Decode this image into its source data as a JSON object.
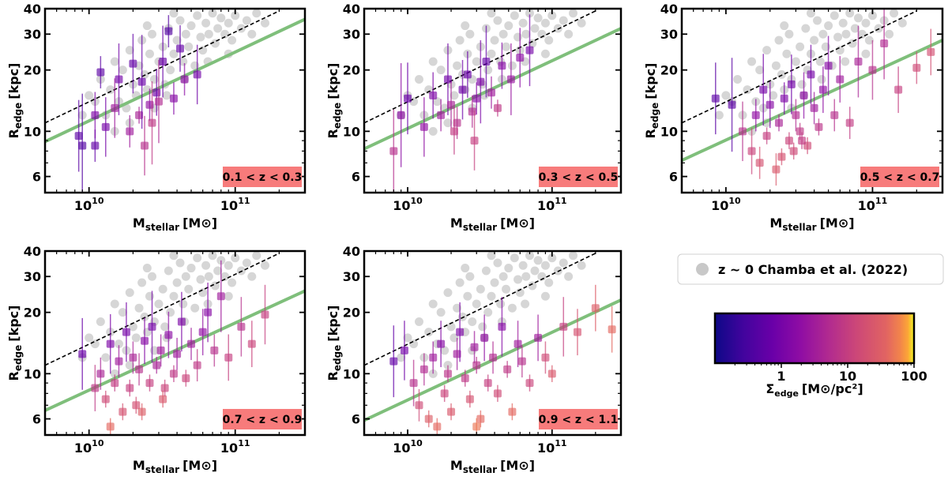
{
  "chart_data": {
    "type": "scatter",
    "x_scale": "log",
    "y_scale": "log",
    "xlim": [
      5000000000,
      300000000000
    ],
    "ylim": [
      5,
      40
    ],
    "x_tick_labels": [
      "10^10",
      "10^11"
    ],
    "y_tick_labels": [
      "6",
      "10",
      "20",
      "30",
      "40"
    ],
    "xlabel_main": "M",
    "xlabel_sub": "stellar",
    "xlabel_unit": "[M⊙]",
    "ylabel_main": "R",
    "ylabel_sub": "edge",
    "ylabel_unit": "[kpc]",
    "legend": {
      "label": "z ~ 0 Chamba et al. (2022)",
      "marker_color": "#c8c8c8"
    },
    "colorbar": {
      "colormap": "plasma",
      "scale": "log",
      "range": [
        0.1,
        100
      ],
      "tick_labels": [
        "1",
        "10",
        "100"
      ],
      "tick_values": [
        1,
        10,
        100
      ],
      "label_main": "Σ",
      "label_sub": "edge",
      "label_unit": "[M⊙/pc²]"
    },
    "colors": {
      "reference_points": "#c8c8c8",
      "fit_line": "#7fbf7b",
      "dashed_line": "#000000",
      "redshift_box": "#f77b7b"
    },
    "dashed_line": {
      "x": [
        5000000000,
        200000000000
      ],
      "y": [
        11,
        39
      ]
    },
    "panels": [
      {
        "redshift_label": "0.1 < z < 0.3",
        "fit_line": {
          "x": [
            5000000000,
            300000000000
          ],
          "y": [
            8.9,
            35.5
          ]
        }
      },
      {
        "redshift_label": "0.3 < z < 0.5",
        "fit_line": {
          "x": [
            5000000000,
            300000000000
          ],
          "y": [
            8.2,
            32
          ]
        }
      },
      {
        "redshift_label": "0.5 < z < 0.7",
        "fit_line": {
          "x": [
            5000000000,
            300000000000
          ],
          "y": [
            7.2,
            28
          ]
        }
      },
      {
        "redshift_label": "0.7 < z < 0.9",
        "fit_line": {
          "x": [
            5000000000,
            300000000000
          ],
          "y": [
            6.6,
            25.5
          ]
        }
      },
      {
        "redshift_label": "0.9 < z < 1.1",
        "fit_line": {
          "x": [
            5000000000,
            300000000000
          ],
          "y": [
            5.9,
            23
          ]
        }
      }
    ],
    "reference_points_z0": [
      [
        11000000000,
        14
      ],
      [
        12000000000,
        18
      ],
      [
        13000000000,
        12
      ],
      [
        14000000000,
        16
      ],
      [
        15000000000,
        22
      ],
      [
        16000000000,
        14
      ],
      [
        17000000000,
        20
      ],
      [
        18000000000,
        13
      ],
      [
        19000000000,
        25
      ],
      [
        20000000000,
        17
      ],
      [
        21000000000,
        15
      ],
      [
        22000000000,
        21
      ],
      [
        23000000000,
        28
      ],
      [
        24000000000,
        19
      ],
      [
        25000000000,
        16
      ],
      [
        26000000000,
        24
      ],
      [
        27000000000,
        30
      ],
      [
        28000000000,
        18
      ],
      [
        30000000000,
        22
      ],
      [
        32000000000,
        26
      ],
      [
        33000000000,
        17
      ],
      [
        35000000000,
        32
      ],
      [
        36000000000,
        20
      ],
      [
        38000000000,
        24
      ],
      [
        40000000000,
        28
      ],
      [
        42000000000,
        35
      ],
      [
        44000000000,
        22
      ],
      [
        46000000000,
        30
      ],
      [
        48000000000,
        26
      ],
      [
        50000000000,
        33
      ],
      [
        53000000000,
        21
      ],
      [
        55000000000,
        37
      ],
      [
        58000000000,
        29
      ],
      [
        60000000000,
        25
      ],
      [
        63000000000,
        34
      ],
      [
        66000000000,
        30
      ],
      [
        70000000000,
        38
      ],
      [
        73000000000,
        27
      ],
      [
        76000000000,
        32
      ],
      [
        80000000000,
        36
      ],
      [
        85000000000,
        30
      ],
      [
        90000000000,
        34
      ],
      [
        95000000000,
        28
      ],
      [
        100000000000,
        37
      ],
      [
        110000000000,
        32
      ],
      [
        120000000000,
        35
      ],
      [
        130000000000,
        30
      ],
      [
        140000000000,
        38
      ],
      [
        160000000000,
        34
      ],
      [
        9000000000,
        12
      ],
      [
        10000000000,
        15
      ],
      [
        15000000000,
        10
      ],
      [
        19000000000,
        11
      ],
      [
        28000000000,
        13
      ],
      [
        34000000000,
        15
      ],
      [
        45000000000,
        18
      ],
      [
        65000000000,
        22
      ],
      [
        90000000000,
        24
      ],
      [
        25000000000,
        33
      ],
      [
        38000000000,
        38
      ]
    ]
  },
  "highz_series_note": "",
  "highz": [
    [
      [
        8500000000.0,
        9.5,
        1.5
      ],
      [
        9000000000.0,
        8.5,
        1.8
      ],
      [
        11000000000.0,
        8.5,
        1.2
      ],
      [
        11000000000.0,
        12,
        1.3
      ],
      [
        12000000000.0,
        19.5,
        1.2
      ],
      [
        13000000000.0,
        10.5,
        1.4
      ],
      [
        16000000000.0,
        18,
        1.5
      ],
      [
        19000000000.0,
        10,
        1.2
      ],
      [
        20000000000.0,
        21.5,
        1.4
      ],
      [
        22000000000.0,
        12,
        1.1
      ],
      [
        24000000000.0,
        8.5,
        1.4
      ],
      [
        26000000000.0,
        13.5,
        1.2
      ],
      [
        29000000000.0,
        15.5,
        1.3
      ],
      [
        30000000000.0,
        14,
        1.6
      ],
      [
        32000000000.0,
        22,
        1.5
      ],
      [
        35000000000.0,
        31,
        1.2
      ],
      [
        38000000000.0,
        14.5,
        1.2
      ],
      [
        42000000000.0,
        25.5,
        1.3
      ],
      [
        45000000000.0,
        18,
        1.2
      ],
      [
        55000000000.0,
        19,
        1.4
      ],
      [
        23000000000.0,
        17.5,
        1.7
      ],
      [
        15000000000.0,
        13,
        1.4
      ],
      [
        27000000000.0,
        11,
        1.6
      ]
    ],
    [
      [
        8000000000.0,
        8,
        1.6
      ],
      [
        9000000000.0,
        12,
        1.8
      ],
      [
        10000000000.0,
        14.5,
        1.5
      ],
      [
        13000000000.0,
        10.5,
        1.4
      ],
      [
        15000000000.0,
        15,
        1.3
      ],
      [
        17000000000.0,
        12,
        1.2
      ],
      [
        19000000000.0,
        18,
        1.5
      ],
      [
        20000000000.0,
        13.5,
        1.3
      ],
      [
        22000000000.0,
        11,
        1.2
      ],
      [
        24000000000.0,
        16,
        1.4
      ],
      [
        26000000000.0,
        19,
        1.3
      ],
      [
        28000000000.0,
        12.5,
        1.2
      ],
      [
        30000000000.0,
        14.5,
        1.2
      ],
      [
        32000000000.0,
        17.5,
        1.6
      ],
      [
        35000000000.0,
        22,
        1.5
      ],
      [
        38000000000.0,
        15.5,
        1.2
      ],
      [
        42000000000.0,
        13,
        1.1
      ],
      [
        45000000000.0,
        21,
        1.3
      ],
      [
        52000000000.0,
        18,
        1.5
      ],
      [
        60000000000.0,
        23,
        1.4
      ],
      [
        70000000000.0,
        25,
        1.5
      ],
      [
        21000000000.0,
        10,
        1.3
      ],
      [
        29000000000.0,
        9,
        1.4
      ]
    ],
    [
      [
        8500000000.0,
        14.5,
        1.5
      ],
      [
        11000000000.0,
        13.5,
        1.7
      ],
      [
        13000000000.0,
        10,
        1.4
      ],
      [
        15000000000.0,
        8,
        1.3
      ],
      [
        16000000000.0,
        12,
        1.2
      ],
      [
        17000000000.0,
        7,
        1.2
      ],
      [
        18000000000.0,
        16,
        1.5
      ],
      [
        19000000000.0,
        9.5,
        1.1
      ],
      [
        20000000000.0,
        13.5,
        1.3
      ],
      [
        22000000000.0,
        6.5,
        1.2
      ],
      [
        23000000000.0,
        11,
        1.1
      ],
      [
        25000000000.0,
        14.5,
        1.2
      ],
      [
        27000000000.0,
        9,
        1.1
      ],
      [
        28000000000.0,
        17,
        1.4
      ],
      [
        30000000000.0,
        12,
        1.2
      ],
      [
        32000000000.0,
        10,
        1.1
      ],
      [
        34000000000.0,
        15,
        1.3
      ],
      [
        36000000000.0,
        8.5,
        1.1
      ],
      [
        38000000000.0,
        19,
        1.4
      ],
      [
        40000000000.0,
        13,
        1.2
      ],
      [
        43000000000.0,
        10.5,
        1.1
      ],
      [
        46000000000.0,
        16,
        1.3
      ],
      [
        50000000000.0,
        21,
        1.4
      ],
      [
        55000000000.0,
        12,
        1.2
      ],
      [
        60000000000.0,
        18,
        1.3
      ],
      [
        70000000000.0,
        11,
        1.2
      ],
      [
        80000000000.0,
        22,
        1.5
      ],
      [
        100000000000.0,
        20,
        1.4
      ],
      [
        120000000000.0,
        27,
        1.5
      ],
      [
        150000000000.0,
        16,
        1.3
      ],
      [
        200000000000.0,
        20.5,
        1.2
      ],
      [
        250000000000.0,
        24.5,
        1.3
      ],
      [
        24000000000.0,
        7.5,
        1.1
      ],
      [
        33000000000.0,
        9,
        1.1
      ],
      [
        29000000000.0,
        8,
        1.1
      ]
    ],
    [
      [
        9000000000.0,
        12.5,
        1.5
      ],
      [
        11000000000.0,
        8.5,
        1.3
      ],
      [
        12000000000.0,
        10,
        1.2
      ],
      [
        13000000000.0,
        7.5,
        1.1
      ],
      [
        14000000000.0,
        14,
        1.4
      ],
      [
        15000000000.0,
        9,
        1.1
      ],
      [
        16000000000.0,
        11.5,
        1.2
      ],
      [
        17000000000.0,
        6.5,
        1.1
      ],
      [
        18000000000.0,
        16,
        1.4
      ],
      [
        19000000000.0,
        8.5,
        1.1
      ],
      [
        20000000000.0,
        12,
        1.2
      ],
      [
        21000000000.0,
        7,
        1.1
      ],
      [
        22000000000.0,
        10.5,
        1.2
      ],
      [
        24000000000.0,
        14.5,
        1.3
      ],
      [
        26000000000.0,
        9,
        1.1
      ],
      [
        27000000000.0,
        17,
        1.5
      ],
      [
        29000000000.0,
        11,
        1.1
      ],
      [
        31000000000.0,
        13,
        1.2
      ],
      [
        33000000000.0,
        8.5,
        1.1
      ],
      [
        35000000000.0,
        15.5,
        1.3
      ],
      [
        38000000000.0,
        10,
        1.1
      ],
      [
        40000000000.0,
        12.5,
        1.2
      ],
      [
        43000000000.0,
        18,
        1.4
      ],
      [
        46000000000.0,
        9.5,
        1.1
      ],
      [
        50000000000.0,
        14,
        1.2
      ],
      [
        55000000000.0,
        11,
        1.2
      ],
      [
        60000000000.0,
        16,
        1.3
      ],
      [
        65000000000.0,
        20,
        1.4
      ],
      [
        72000000000.0,
        13,
        1.2
      ],
      [
        80000000000.0,
        24,
        1.5
      ],
      [
        90000000000.0,
        12,
        1.3
      ],
      [
        110000000000.0,
        17,
        1.4
      ],
      [
        130000000000.0,
        14,
        1.3
      ],
      [
        160000000000.0,
        19.5,
        1.4
      ],
      [
        14000000000.0,
        5.5,
        1.1
      ],
      [
        23000000000.0,
        6.5,
        1.1
      ],
      [
        32000000000.0,
        7.5,
        1.1
      ]
    ],
    [
      [
        8000000000.0,
        11.5,
        1.5
      ],
      [
        9500000000.0,
        13,
        1.4
      ],
      [
        11000000000.0,
        9,
        1.3
      ],
      [
        12000000000.0,
        7,
        1.2
      ],
      [
        13000000000.0,
        10.5,
        1.2
      ],
      [
        14000000000.0,
        6,
        1.1
      ],
      [
        15000000000.0,
        12,
        1.2
      ],
      [
        16000000000.0,
        5.5,
        1.1
      ],
      [
        17000000000.0,
        14,
        1.3
      ],
      [
        18000000000.0,
        8,
        1.1
      ],
      [
        19000000000.0,
        10,
        1.1
      ],
      [
        20000000000.0,
        6.5,
        1.1
      ],
      [
        22000000000.0,
        12.5,
        1.2
      ],
      [
        23000000000.0,
        16,
        1.4
      ],
      [
        25000000000.0,
        9.5,
        1.1
      ],
      [
        27000000000.0,
        7.5,
        1.1
      ],
      [
        29000000000.0,
        13.5,
        1.2
      ],
      [
        30000000000.0,
        11,
        1.1
      ],
      [
        32000000000.0,
        6,
        1.1
      ],
      [
        34000000000.0,
        15,
        1.3
      ],
      [
        36000000000.0,
        9,
        1.1
      ],
      [
        39000000000.0,
        12,
        1.2
      ],
      [
        42000000000.0,
        8,
        1.1
      ],
      [
        45000000000.0,
        17,
        1.4
      ],
      [
        49000000000.0,
        10.5,
        1.1
      ],
      [
        53000000000.0,
        6.5,
        1.1
      ],
      [
        58000000000.0,
        14,
        1.3
      ],
      [
        62000000000.0,
        11.5,
        1.2
      ],
      [
        70000000000.0,
        9,
        1.1
      ],
      [
        80000000000.0,
        15,
        1.3
      ],
      [
        90000000000.0,
        12,
        1.2
      ],
      [
        100000000000.0,
        10,
        1.1
      ],
      [
        120000000000.0,
        17,
        1.4
      ],
      [
        150000000000.0,
        16,
        1.3
      ],
      [
        200000000000.0,
        21,
        1.3
      ],
      [
        260000000000.0,
        16.5,
        1.3
      ],
      [
        30000000000.0,
        5.5,
        1.1
      ]
    ]
  ],
  "highz_sigma": [
    [
      0.5,
      0.4,
      0.6,
      1.2,
      0.5,
      1.0,
      0.9,
      3,
      0.6,
      4,
      6,
      2,
      0.8,
      5,
      0.7,
      0.4,
      1.5,
      0.6,
      1.8,
      0.9,
      0.7,
      3,
      8
    ],
    [
      6,
      1.8,
      0.7,
      2,
      1.2,
      3,
      0.9,
      4,
      6,
      0.8,
      0.7,
      5,
      1.6,
      1.2,
      0.6,
      3,
      8,
      1.5,
      2.5,
      1.8,
      1.0,
      9,
      10
    ],
    [
      0.5,
      0.5,
      6,
      12,
      2,
      20,
      1,
      10,
      1.5,
      25,
      4,
      1.2,
      12,
      0.9,
      5,
      8,
      1.8,
      15,
      1.0,
      3,
      7,
      2,
      1.5,
      6,
      3,
      9,
      4,
      6,
      5,
      10,
      15,
      18,
      20,
      9,
      14
    ],
    [
      0.7,
      8,
      4,
      15,
      1.2,
      9,
      3,
      20,
      1.0,
      10,
      4,
      18,
      6,
      1.5,
      10,
      1.0,
      4,
      3,
      12,
      1.8,
      8,
      3,
      1.2,
      12,
      3,
      8,
      2,
      1.5,
      6,
      3,
      10,
      6,
      12,
      10,
      40,
      30,
      25
    ],
    [
      0.6,
      0.9,
      6,
      15,
      5,
      30,
      3,
      40,
      1.5,
      12,
      7,
      25,
      3,
      1.2,
      8,
      20,
      3,
      6,
      40,
      2,
      10,
      5,
      15,
      1.5,
      8,
      40,
      3,
      6,
      12,
      3,
      15,
      25,
      10,
      20,
      30,
      40,
      50
    ]
  ]
}
